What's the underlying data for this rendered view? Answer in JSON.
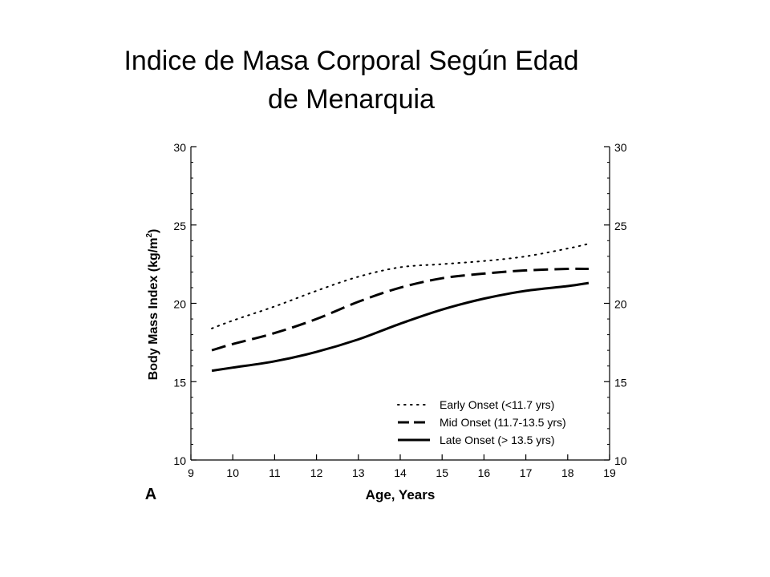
{
  "slide": {
    "title_line1": "Indice de Masa Corporal Según Edad",
    "title_line2": "de Menarquia"
  },
  "chart_data": {
    "type": "line",
    "panel_label": "A",
    "xlabel": "Age, Years",
    "ylabel_main": "Body Mass Index (kg/m",
    "ylabel_sup": "2",
    "ylabel_end": ")",
    "xlim": [
      9,
      19
    ],
    "ylim": [
      10,
      30
    ],
    "xticks": [
      9,
      10,
      11,
      12,
      13,
      14,
      15,
      16,
      17,
      18,
      19
    ],
    "yticks": [
      10,
      15,
      20,
      25,
      30
    ],
    "legend_position": "bottom-right",
    "x": [
      9.5,
      10,
      11,
      12,
      13,
      14,
      15,
      16,
      17,
      18,
      18.5
    ],
    "series": [
      {
        "name": "Early Onset (<11.7 yrs)",
        "style": "dotted",
        "values": [
          18.4,
          18.9,
          19.8,
          20.8,
          21.7,
          22.3,
          22.5,
          22.7,
          23.0,
          23.5,
          23.8
        ]
      },
      {
        "name": "Mid Onset (11.7-13.5 yrs)",
        "style": "dashed",
        "values": [
          17.0,
          17.4,
          18.1,
          19.0,
          20.1,
          21.0,
          21.6,
          21.9,
          22.1,
          22.2,
          22.2
        ]
      },
      {
        "name": "Late Onset (> 13.5 yrs)",
        "style": "solid",
        "values": [
          15.7,
          15.9,
          16.3,
          16.9,
          17.7,
          18.7,
          19.6,
          20.3,
          20.8,
          21.1,
          21.3
        ]
      }
    ]
  }
}
